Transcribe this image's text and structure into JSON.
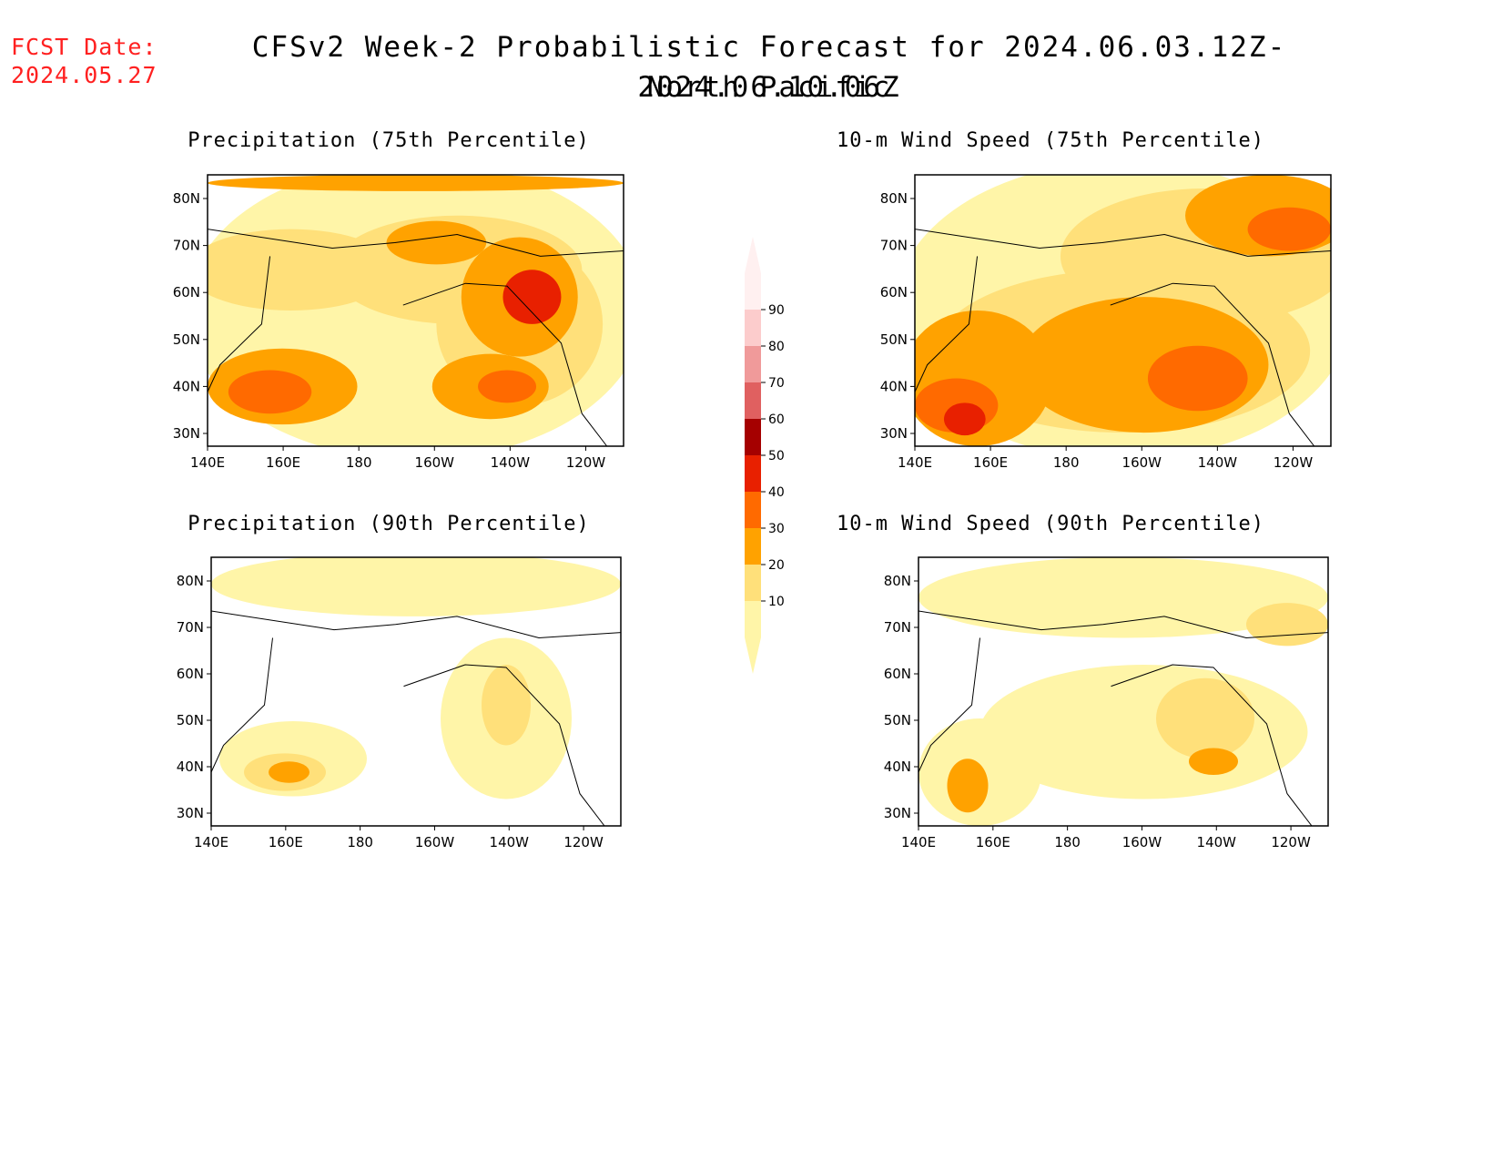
{
  "header": {
    "fcst_date": "FCST Date:\n2024.05.27",
    "title": "CFSv2 Week-2 Probabilistic Forecast for 2024.06.03.12Z-2024.06.10.06Z",
    "subtitle": "North Pacific"
  },
  "panels": [
    {
      "id": "precip75",
      "title": "Precipitation (75th Percentile)",
      "level": 3
    },
    {
      "id": "wind75",
      "title": "10-m Wind Speed (75th Percentile)",
      "level": 3
    },
    {
      "id": "precip90",
      "title": "Precipitation (90th Percentile)",
      "level": 1
    },
    {
      "id": "wind90",
      "title": "10-m Wind Speed (90th Percentile)",
      "level": 2
    }
  ],
  "axes": {
    "lon_labels": [
      "140E",
      "160E",
      "180",
      "160W",
      "140W",
      "120W"
    ],
    "lat_labels": [
      "80N",
      "70N",
      "60N",
      "50N",
      "40N",
      "30N"
    ]
  },
  "colorbar": {
    "levels": [
      "10",
      "20",
      "30",
      "40",
      "50",
      "60",
      "70",
      "80",
      "90"
    ],
    "colors": [
      "#fff5a8",
      "#ffe07a",
      "#ffa200",
      "#ff6a00",
      "#e82000",
      "#a50000",
      "#e06060",
      "#f09a9a",
      "#fccccc",
      "#fff0f0"
    ]
  }
}
